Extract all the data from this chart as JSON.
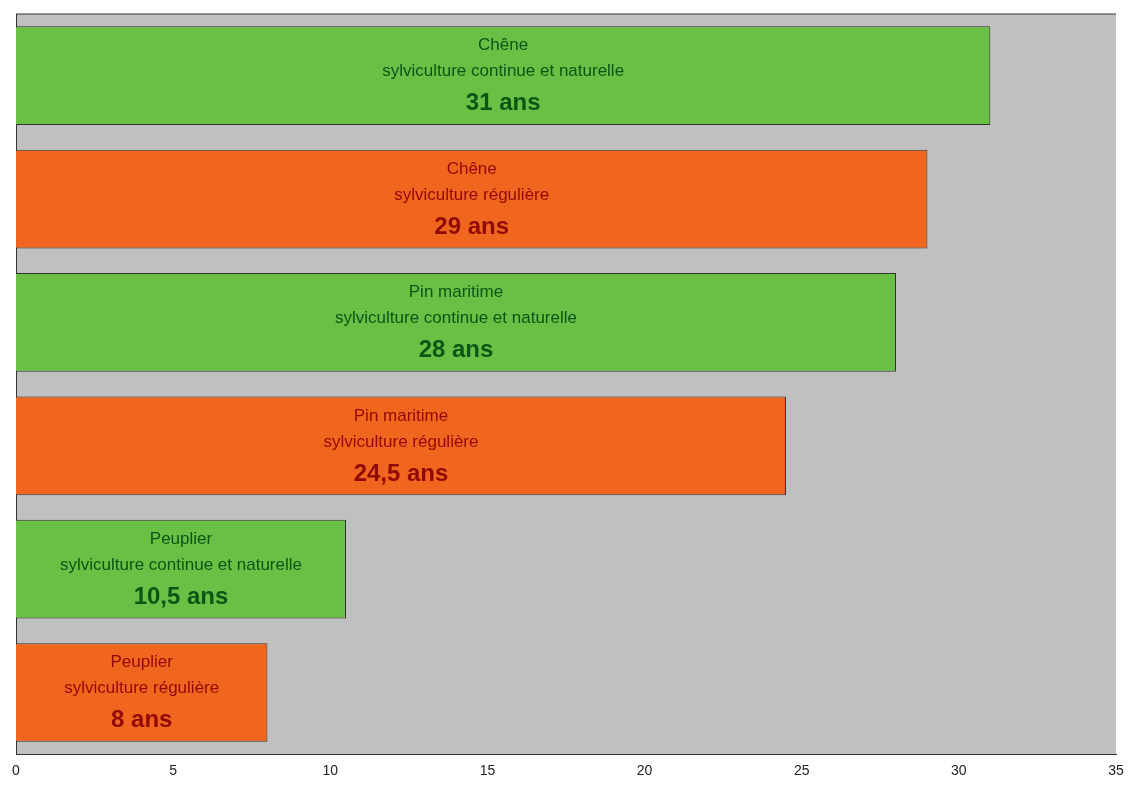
{
  "chart_data": {
    "type": "bar",
    "orientation": "horizontal",
    "categories": [
      "Chêne\nsylviculture continue et naturelle",
      "Chêne\nsylviculture régulière",
      "Pin maritime\nsylviculture continue et naturelle",
      "Pin maritime\nsylviculture régulière",
      "Peuplier\nsylviculture continue et naturelle",
      "Peuplier\nsylviculture régulière"
    ],
    "values": [
      31,
      29,
      28,
      24.5,
      10.5,
      8
    ],
    "value_labels": [
      "31 ans",
      "29 ans",
      "28 ans",
      "24,5 ans",
      "10,5 ans",
      "8 ans"
    ],
    "colors": [
      "#6abf45",
      "#f0661e",
      "#6abf45",
      "#f0661e",
      "#6abf45",
      "#f0661e"
    ],
    "xlim": [
      0,
      35
    ],
    "xticks": [
      0,
      5,
      10,
      15,
      20,
      25,
      30,
      35
    ],
    "grid": false,
    "legend": false,
    "tick_labels": "x"
  }
}
